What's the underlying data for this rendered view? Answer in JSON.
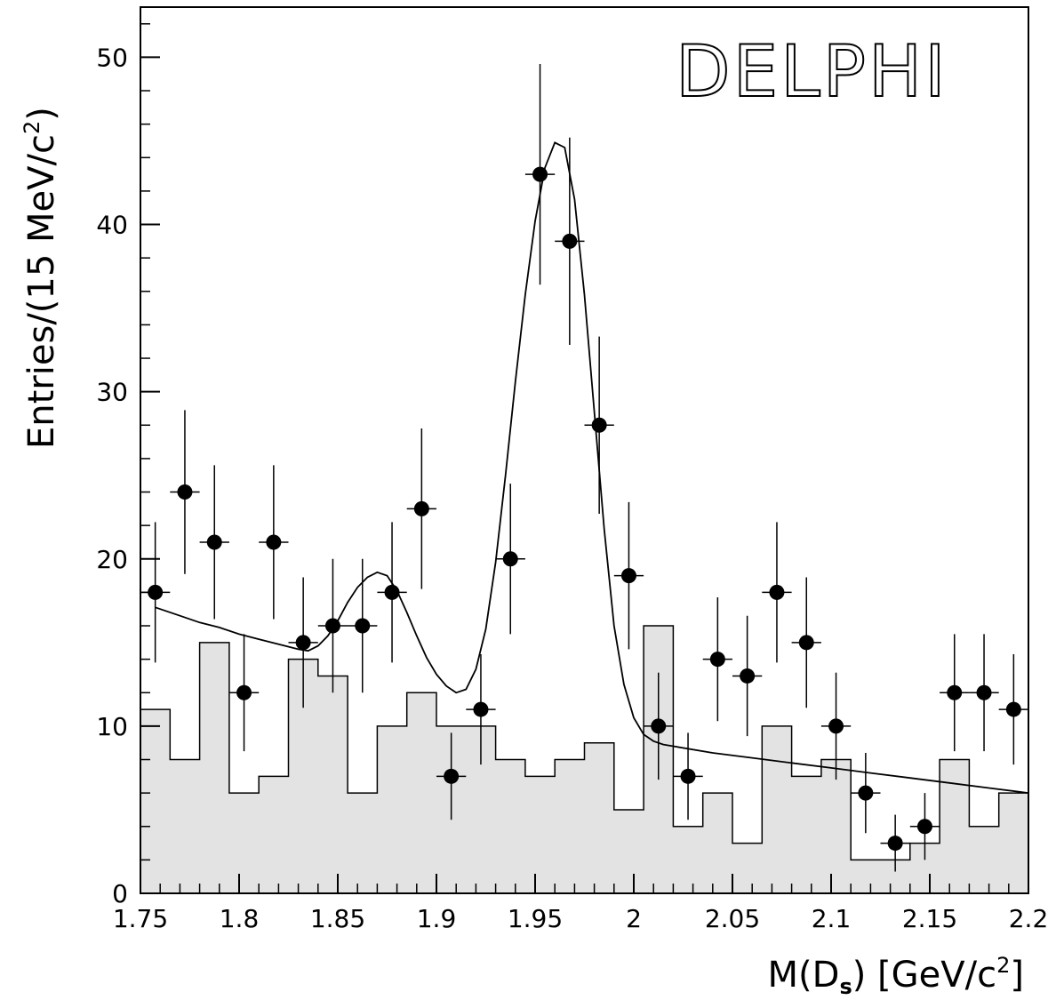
{
  "chart_data": {
    "type": "scatter",
    "title": "",
    "logo_text": "DELPHI",
    "xlabel": {
      "main": "M(D",
      "sub": "s",
      "rest": ") [GeV/c",
      "sup": "2",
      "end": "]"
    },
    "ylabel": {
      "main": "Entries/(15 MeV/c",
      "sup": "2",
      "end": ")"
    },
    "xlim": [
      1.75,
      2.2
    ],
    "ylim": [
      0,
      53
    ],
    "x_ticks": [
      1.75,
      1.8,
      1.85,
      1.9,
      1.95,
      2.0,
      2.05,
      2.1,
      2.15,
      2.2
    ],
    "x_tick_labels": [
      "1.75",
      "1.8",
      "1.85",
      "1.9",
      "1.95",
      "2",
      "2.05",
      "2.1",
      "2.15",
      "2.2"
    ],
    "y_ticks": [
      0,
      10,
      20,
      30,
      40,
      50
    ],
    "y_tick_labels": [
      "0",
      "10",
      "20",
      "30",
      "40",
      "50"
    ],
    "bin_width": 0.015,
    "data_points": {
      "x": [
        1.7575,
        1.7725,
        1.7875,
        1.8025,
        1.8175,
        1.8325,
        1.8475,
        1.8625,
        1.8775,
        1.8925,
        1.9075,
        1.9225,
        1.9375,
        1.9525,
        1.9675,
        1.9825,
        1.9975,
        2.0125,
        2.0275,
        2.0425,
        2.0575,
        2.0725,
        2.0875,
        2.1025,
        2.1175,
        2.1325,
        2.1475,
        2.1625,
        2.1775,
        2.1925
      ],
      "y": [
        18,
        24,
        21,
        12,
        21,
        15,
        16,
        16,
        18,
        23,
        7,
        11,
        20,
        43,
        39,
        28,
        19,
        10,
        7,
        14,
        13,
        18,
        15,
        10,
        6,
        3,
        4,
        12,
        12,
        11
      ],
      "err": [
        4.2,
        4.9,
        4.6,
        3.5,
        4.6,
        3.9,
        4.0,
        4.0,
        4.2,
        4.8,
        2.6,
        3.3,
        4.5,
        6.6,
        6.2,
        5.3,
        4.4,
        3.2,
        2.6,
        3.7,
        3.6,
        4.2,
        3.9,
        3.2,
        2.4,
        1.7,
        2.0,
        3.5,
        3.5,
        3.3
      ]
    },
    "background_histogram": {
      "edges": [
        1.75,
        1.765,
        1.78,
        1.795,
        1.81,
        1.825,
        1.84,
        1.855,
        1.87,
        1.885,
        1.9,
        1.915,
        1.93,
        1.945,
        1.96,
        1.975,
        1.99,
        2.005,
        2.02,
        2.035,
        2.05,
        2.065,
        2.08,
        2.095,
        2.11,
        2.125,
        2.14,
        2.155,
        2.17,
        2.185,
        2.2
      ],
      "values": [
        11,
        8,
        15,
        6,
        7,
        14,
        13,
        6,
        10,
        12,
        10,
        10,
        8,
        7,
        8,
        9,
        5,
        16,
        4,
        6,
        3,
        10,
        7,
        8,
        2,
        2,
        3,
        8,
        4,
        6
      ],
      "fill_color": "#e3e3e3"
    },
    "fit_curve": {
      "x": [
        1.7575,
        1.77,
        1.78,
        1.79,
        1.8,
        1.81,
        1.82,
        1.83,
        1.835,
        1.84,
        1.845,
        1.85,
        1.855,
        1.86,
        1.865,
        1.87,
        1.875,
        1.88,
        1.885,
        1.89,
        1.895,
        1.9,
        1.905,
        1.91,
        1.915,
        1.92,
        1.925,
        1.93,
        1.935,
        1.94,
        1.945,
        1.95,
        1.955,
        1.96,
        1.965,
        1.97,
        1.975,
        1.98,
        1.985,
        1.99,
        1.995,
        2.0,
        2.005,
        2.01,
        2.015,
        2.02,
        2.04,
        2.06,
        2.08,
        2.1,
        2.12,
        2.14,
        2.16,
        2.18,
        2.2
      ],
      "y": [
        17.1,
        16.6,
        16.2,
        15.9,
        15.5,
        15.2,
        14.9,
        14.6,
        14.5,
        14.8,
        15.4,
        16.3,
        17.4,
        18.3,
        18.9,
        19.2,
        19.0,
        18.1,
        16.8,
        15.4,
        14.1,
        13.1,
        12.4,
        12.0,
        12.2,
        13.4,
        15.8,
        19.8,
        25.0,
        30.6,
        35.8,
        40.2,
        43.4,
        44.9,
        44.6,
        41.5,
        35.8,
        28.8,
        21.8,
        16.0,
        12.5,
        10.5,
        9.5,
        9.1,
        8.9,
        8.8,
        8.4,
        8.1,
        7.8,
        7.5,
        7.2,
        6.9,
        6.6,
        6.3,
        6.0
      ]
    }
  }
}
